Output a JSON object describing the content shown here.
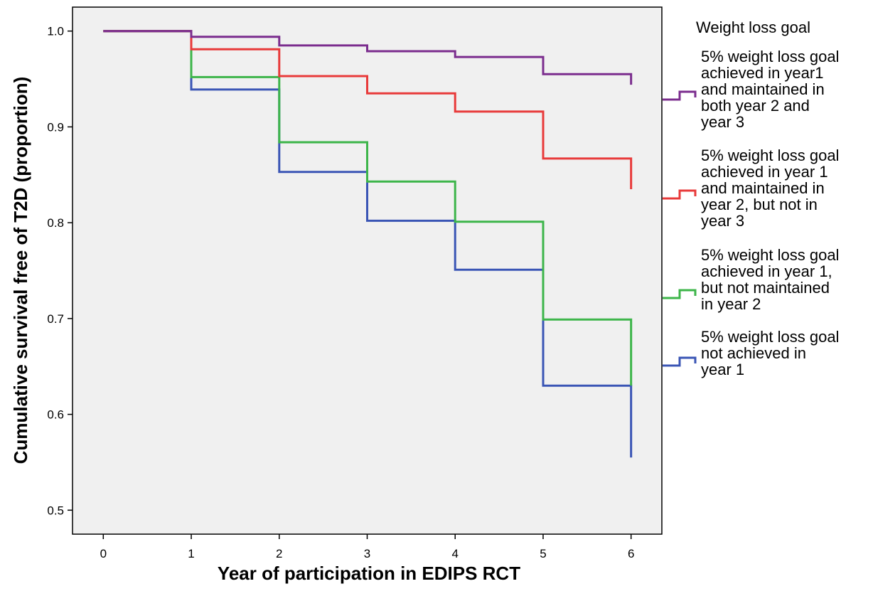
{
  "chart_data": {
    "type": "line",
    "step": true,
    "xlabel": "Year of participation in EDIPS RCT",
    "ylabel": "Cumulative survival free of T2D (proportion)",
    "xlim": [
      -0.35,
      6.35
    ],
    "ylim": [
      0.475,
      1.025
    ],
    "xticks": [
      "0",
      "1",
      "2",
      "3",
      "4",
      "5",
      "6"
    ],
    "yticks": [
      "0.5",
      "0.6",
      "0.7",
      "0.8",
      "0.9",
      "1.0"
    ],
    "grid": false,
    "background": "#f0f0f0",
    "legend": {
      "title": "Weight loss goal",
      "position": "right"
    },
    "series": [
      {
        "name": "5% weight loss goal achieved in year1 and maintained in both year 2 and year 3",
        "label_lines": [
          "5% weight loss goal",
          "achieved in year1",
          "and maintained in",
          "both year 2 and",
          "year 3"
        ],
        "color": "#7b2d8e",
        "points": [
          [
            0,
            1.0
          ],
          [
            1,
            1.0
          ],
          [
            1,
            0.994
          ],
          [
            2,
            0.994
          ],
          [
            2,
            0.985
          ],
          [
            3,
            0.985
          ],
          [
            3,
            0.979
          ],
          [
            4,
            0.979
          ],
          [
            4,
            0.973
          ],
          [
            5,
            0.973
          ],
          [
            5,
            0.955
          ],
          [
            6,
            0.955
          ],
          [
            6,
            0.944
          ]
        ]
      },
      {
        "name": "5% weight loss goal achieved in year 1 and maintained in year 2, but not in year 3",
        "label_lines": [
          "5% weight loss goal",
          "achieved in year 1",
          "and maintained in",
          "year 2, but not in",
          "year 3"
        ],
        "color": "#e83a3a",
        "points": [
          [
            0,
            1.0
          ],
          [
            1,
            1.0
          ],
          [
            1,
            0.981
          ],
          [
            2,
            0.981
          ],
          [
            2,
            0.953
          ],
          [
            3,
            0.953
          ],
          [
            3,
            0.935
          ],
          [
            4,
            0.935
          ],
          [
            4,
            0.916
          ],
          [
            5,
            0.916
          ],
          [
            5,
            0.867
          ],
          [
            6,
            0.867
          ],
          [
            6,
            0.835
          ]
        ]
      },
      {
        "name": "5% weight loss goal achieved in year 1, but not maintained in year 2",
        "label_lines": [
          "5% weight loss goal",
          "achieved in year 1,",
          "but not maintained",
          "in year 2"
        ],
        "color": "#3db54a",
        "points": [
          [
            0,
            1.0
          ],
          [
            1,
            1.0
          ],
          [
            1,
            0.952
          ],
          [
            2,
            0.952
          ],
          [
            2,
            0.884
          ],
          [
            3,
            0.884
          ],
          [
            3,
            0.843
          ],
          [
            4,
            0.843
          ],
          [
            4,
            0.801
          ],
          [
            5,
            0.801
          ],
          [
            5,
            0.699
          ],
          [
            6,
            0.699
          ],
          [
            6,
            0.63
          ]
        ]
      },
      {
        "name": "5% weight loss goal not achieved in year 1",
        "label_lines": [
          "5% weight loss goal",
          "not achieved in",
          "year 1"
        ],
        "color": "#3a55b5",
        "points": [
          [
            0,
            1.0
          ],
          [
            1,
            1.0
          ],
          [
            1,
            0.939
          ],
          [
            2,
            0.939
          ],
          [
            2,
            0.853
          ],
          [
            3,
            0.853
          ],
          [
            3,
            0.802
          ],
          [
            4,
            0.802
          ],
          [
            4,
            0.751
          ],
          [
            5,
            0.751
          ],
          [
            5,
            0.63
          ],
          [
            6,
            0.63
          ],
          [
            6,
            0.555
          ]
        ]
      }
    ]
  }
}
